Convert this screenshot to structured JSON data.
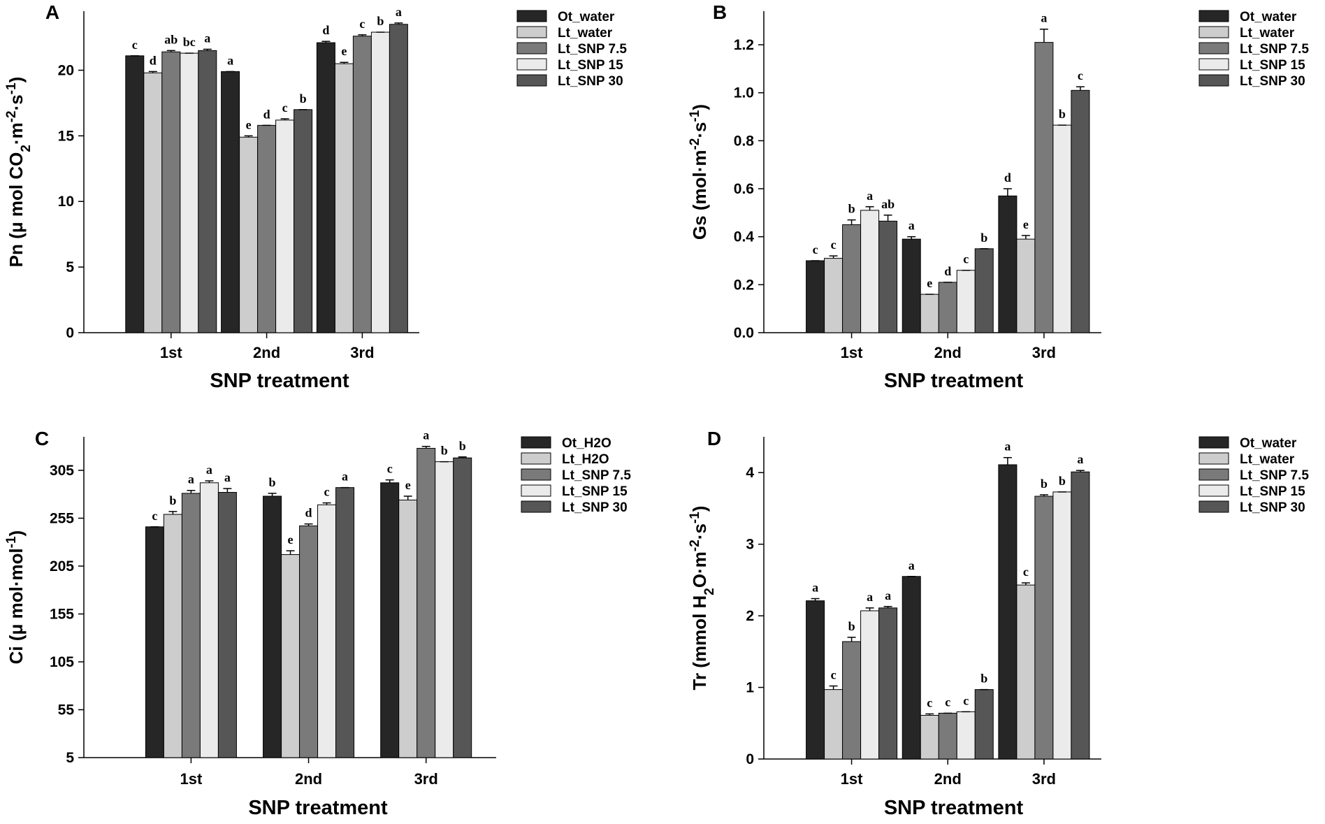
{
  "figure": {
    "background": "#ffffff"
  },
  "chart_data": [
    {
      "id": "A",
      "panel_label": "A",
      "type": "bar",
      "categories": [
        "1st",
        "2nd",
        "3rd"
      ],
      "xlabel": "SNP treatment",
      "ylabel_parts": [
        [
          "Pn (μ mol CO",
          ""
        ],
        [
          "2",
          "sub"
        ],
        [
          "·m",
          ""
        ],
        [
          "-2",
          "sup"
        ],
        [
          "·s",
          ""
        ],
        [
          "-1",
          "sup"
        ],
        [
          ")",
          ""
        ]
      ],
      "ylim": [
        0,
        24.5
      ],
      "yticks": [
        0,
        5,
        10,
        15,
        20
      ],
      "legend": [
        "Ot_water",
        "Lt_water",
        "Lt_SNP 7.5",
        "Lt_SNP 15",
        "Lt_SNP 30"
      ],
      "legend_position": "top-right",
      "series": [
        {
          "name": "Ot_water",
          "color": "#262626",
          "values": [
            21.1,
            19.9,
            22.1
          ],
          "errors": [
            0.0,
            0.0,
            0.1
          ],
          "letters": [
            "c",
            "a",
            "d"
          ]
        },
        {
          "name": "Lt_water",
          "color": "#cdcdcd",
          "values": [
            19.8,
            14.9,
            20.5
          ],
          "errors": [
            0.1,
            0.1,
            0.1
          ],
          "letters": [
            "d",
            "e",
            "e"
          ]
        },
        {
          "name": "Lt_SNP 7.5",
          "color": "#7a7a7a",
          "values": [
            21.4,
            15.8,
            22.6
          ],
          "errors": [
            0.1,
            0.0,
            0.1
          ],
          "letters": [
            "ab",
            "d",
            "c"
          ]
        },
        {
          "name": "Lt_SNP 15",
          "color": "#ebebeb",
          "values": [
            21.3,
            16.2,
            22.9
          ],
          "errors": [
            0.0,
            0.1,
            0.0
          ],
          "letters": [
            "bc",
            "c",
            "b"
          ]
        },
        {
          "name": "Lt_SNP 30",
          "color": "#565656",
          "values": [
            21.5,
            17.0,
            23.5
          ],
          "errors": [
            0.1,
            0.0,
            0.1
          ],
          "letters": [
            "a",
            "b",
            "a"
          ]
        }
      ]
    },
    {
      "id": "B",
      "panel_label": "B",
      "type": "bar",
      "categories": [
        "1st",
        "2nd",
        "3rd"
      ],
      "xlabel": "SNP treatment",
      "ylabel_parts": [
        [
          "Gs (mol·m",
          ""
        ],
        [
          "-2",
          "sup"
        ],
        [
          "·s",
          ""
        ],
        [
          "-1",
          "sup"
        ],
        [
          ")",
          ""
        ]
      ],
      "ylim": [
        0,
        1.34
      ],
      "yticks": [
        0.0,
        0.2,
        0.4,
        0.6,
        0.8,
        1.0,
        1.2
      ],
      "ytick_decimals": 1,
      "legend": [
        "Ot_water",
        "Lt_water",
        "Lt_SNP 7.5",
        "Lt_SNP 15",
        "Lt_SNP 30"
      ],
      "legend_position": "top-right",
      "series": [
        {
          "name": "Ot_water",
          "color": "#262626",
          "values": [
            0.3,
            0.39,
            0.57
          ],
          "errors": [
            0.0,
            0.01,
            0.03
          ],
          "letters": [
            "c",
            "a",
            "d"
          ]
        },
        {
          "name": "Lt_water",
          "color": "#cdcdcd",
          "values": [
            0.31,
            0.16,
            0.39
          ],
          "errors": [
            0.01,
            0.0,
            0.015
          ],
          "letters": [
            "c",
            "e",
            "e"
          ]
        },
        {
          "name": "Lt_SNP 7.5",
          "color": "#7a7a7a",
          "values": [
            0.45,
            0.21,
            1.21
          ],
          "errors": [
            0.02,
            0.0,
            0.055
          ],
          "letters": [
            "b",
            "d",
            "a"
          ]
        },
        {
          "name": "Lt_SNP 15",
          "color": "#ebebeb",
          "values": [
            0.51,
            0.26,
            0.865
          ],
          "errors": [
            0.015,
            0.0,
            0.0
          ],
          "letters": [
            "a",
            "c",
            "b"
          ]
        },
        {
          "name": "Lt_SNP 30",
          "color": "#565656",
          "values": [
            0.465,
            0.35,
            1.01
          ],
          "errors": [
            0.025,
            0.0,
            0.015
          ],
          "letters": [
            "ab",
            "b",
            "c"
          ]
        }
      ]
    },
    {
      "id": "C",
      "panel_label": "C",
      "type": "bar",
      "categories": [
        "1st",
        "2nd",
        "3rd"
      ],
      "xlabel": "SNP treatment",
      "ylabel_parts": [
        [
          "Ci (μ mol·mol",
          ""
        ],
        [
          "-1",
          "sup"
        ],
        [
          ")",
          ""
        ]
      ],
      "ylim": [
        5,
        340
      ],
      "yticks": [
        5,
        55,
        105,
        155,
        205,
        255,
        305
      ],
      "legend": [
        "Ot_H2O",
        "Lt_H2O",
        "Lt_SNP 7.5",
        "Lt_SNP 15",
        "Lt_SNP 30"
      ],
      "legend_position": "top-right",
      "series": [
        {
          "name": "Ot_H2O",
          "color": "#262626",
          "values": [
            246,
            278,
            292
          ],
          "errors": [
            0,
            3,
            3
          ],
          "letters": [
            "c",
            "b",
            "c"
          ]
        },
        {
          "name": "Lt_H2O",
          "color": "#cdcdcd",
          "values": [
            259,
            217,
            274
          ],
          "errors": [
            3,
            4,
            4
          ],
          "letters": [
            "b",
            "e",
            "e"
          ]
        },
        {
          "name": "Lt_SNP 7.5",
          "color": "#7a7a7a",
          "values": [
            281,
            247,
            328
          ],
          "errors": [
            3,
            2,
            2
          ],
          "letters": [
            "a",
            "d",
            "a"
          ]
        },
        {
          "name": "Lt_SNP 15",
          "color": "#ebebeb",
          "values": [
            292,
            269,
            314
          ],
          "errors": [
            2,
            2,
            0
          ],
          "letters": [
            "a",
            "c",
            "b"
          ]
        },
        {
          "name": "Lt_SNP 30",
          "color": "#565656",
          "values": [
            282,
            287,
            318
          ],
          "errors": [
            4,
            0,
            1
          ],
          "letters": [
            "a",
            "a",
            "b"
          ]
        }
      ]
    },
    {
      "id": "D",
      "panel_label": "D",
      "type": "bar",
      "categories": [
        "1st",
        "2nd",
        "3rd"
      ],
      "xlabel": "SNP treatment",
      "ylabel_parts": [
        [
          "Tr (mmol H",
          ""
        ],
        [
          "2",
          "sub"
        ],
        [
          "O·m",
          ""
        ],
        [
          "-2",
          "sup"
        ],
        [
          "·s",
          ""
        ],
        [
          "-1",
          "sup"
        ],
        [
          ")",
          ""
        ]
      ],
      "ylim": [
        0,
        4.5
      ],
      "yticks": [
        0,
        1,
        2,
        3,
        4
      ],
      "legend": [
        "Ot_water",
        "Lt_water",
        "Lt_SNP 7.5",
        "Lt_SNP 15",
        "Lt_SNP 30"
      ],
      "legend_position": "top-right",
      "series": [
        {
          "name": "Ot_water",
          "color": "#262626",
          "values": [
            2.21,
            2.55,
            4.11
          ],
          "errors": [
            0.03,
            0.0,
            0.1
          ],
          "letters": [
            "a",
            "a",
            "a"
          ]
        },
        {
          "name": "Lt_water",
          "color": "#cdcdcd",
          "values": [
            0.97,
            0.61,
            2.43
          ],
          "errors": [
            0.05,
            0.02,
            0.03
          ],
          "letters": [
            "c",
            "c",
            "c"
          ]
        },
        {
          "name": "Lt_SNP 7.5",
          "color": "#7a7a7a",
          "values": [
            1.64,
            0.64,
            3.67
          ],
          "errors": [
            0.06,
            0.0,
            0.02
          ],
          "letters": [
            "b",
            "c",
            "b"
          ]
        },
        {
          "name": "Lt_SNP 15",
          "color": "#ebebeb",
          "values": [
            2.07,
            0.66,
            3.73
          ],
          "errors": [
            0.04,
            0.0,
            0.0
          ],
          "letters": [
            "a",
            "c",
            "b"
          ]
        },
        {
          "name": "Lt_SNP 30",
          "color": "#565656",
          "values": [
            2.11,
            0.97,
            4.01
          ],
          "errors": [
            0.02,
            0.0,
            0.02
          ],
          "letters": [
            "a",
            "b",
            "a"
          ]
        }
      ]
    }
  ]
}
